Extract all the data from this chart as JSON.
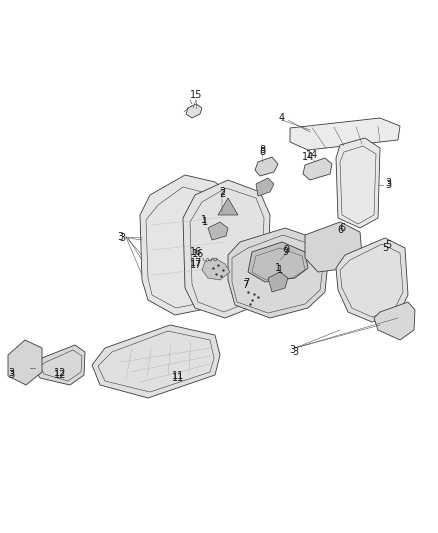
{
  "background": "#ffffff",
  "line_color": "#3a3a3a",
  "label_color": "#1a1a1a",
  "figsize": [
    4.38,
    5.33
  ],
  "dpi": 100,
  "line_width": 0.6,
  "font_size": 7.0
}
